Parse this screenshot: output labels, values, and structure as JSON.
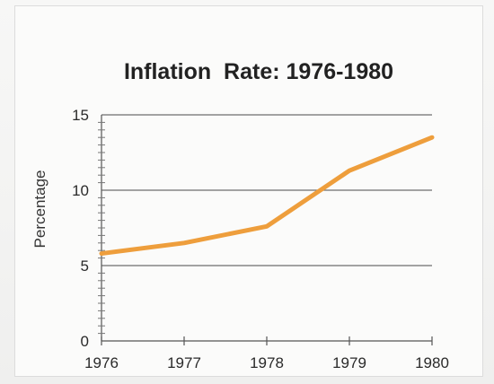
{
  "chart_data": {
    "type": "line",
    "title": "Inflation  Rate: 1976-1980",
    "xlabel": "",
    "ylabel": "Percentage",
    "x": [
      1976,
      1977,
      1978,
      1979,
      1980
    ],
    "x_tick_labels": [
      "1976",
      "1977",
      "1978",
      "1979",
      "1980"
    ],
    "y_tick_labels": [
      "0",
      "5",
      "10",
      "15"
    ],
    "y_ticks": [
      0,
      5,
      10,
      15
    ],
    "ylim": [
      0,
      15
    ],
    "xlim": [
      1976,
      1980
    ],
    "series": [
      {
        "values": [
          5.8,
          6.5,
          7.6,
          11.3,
          13.5
        ],
        "color": "#ee9e3c"
      }
    ],
    "grid": "horizontal"
  }
}
